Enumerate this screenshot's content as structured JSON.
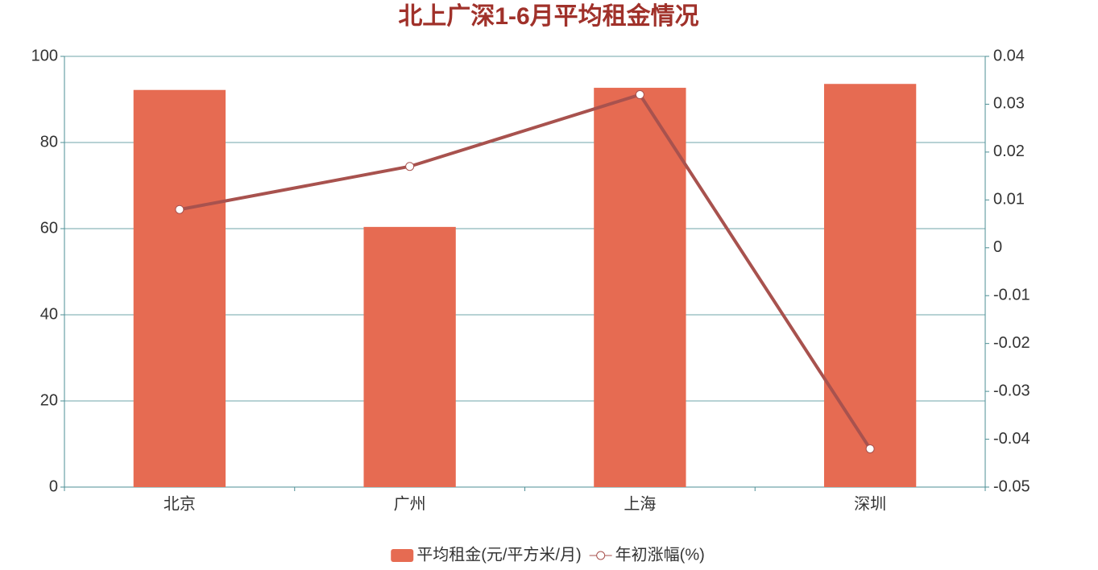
{
  "chart_data": {
    "type": "bar",
    "title": "北上广深1-6月平均租金情况",
    "categories": [
      "北京",
      "广州",
      "上海",
      "深圳"
    ],
    "series": [
      {
        "name": "平均租金(元/平方米/月)",
        "type": "bar",
        "color": "#e66b52",
        "values": [
          92.2,
          60.4,
          92.7,
          93.6
        ]
      },
      {
        "name": "年初涨幅(%)",
        "type": "line",
        "axis": "y2",
        "color": "#a8524e",
        "values": [
          0.008,
          0.017,
          0.032,
          -0.042
        ]
      }
    ],
    "ylim": [
      0,
      100
    ],
    "yticks": [
      0,
      20,
      40,
      60,
      80,
      100
    ],
    "y2lim": [
      -0.05,
      0.04
    ],
    "y2ticks": [
      -0.05,
      -0.04,
      -0.03,
      -0.02,
      -0.01,
      0,
      0.01,
      0.02,
      0.03,
      0.04
    ],
    "grid": true,
    "legend": "bottom"
  }
}
